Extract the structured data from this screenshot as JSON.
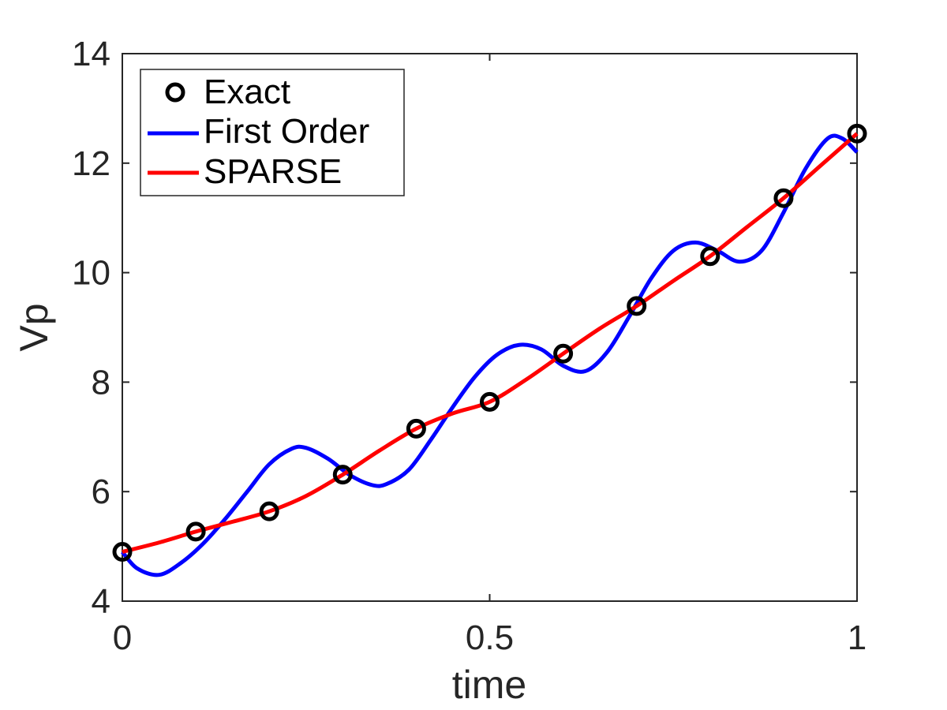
{
  "chart_data": {
    "type": "line",
    "xlabel": "time",
    "ylabel": "Vp",
    "xlim": [
      0,
      1
    ],
    "ylim": [
      4,
      14
    ],
    "xticks": [
      "0",
      "0.5",
      "1"
    ],
    "yticks": [
      "4",
      "6",
      "8",
      "10",
      "12",
      "14"
    ],
    "grid": false,
    "legend_position": "top-left",
    "series": [
      {
        "name": "Exact",
        "style": "markers",
        "color": "#000000",
        "x": [
          0,
          0.1,
          0.2,
          0.3,
          0.4,
          0.5,
          0.6,
          0.7,
          0.8,
          0.9,
          1.0
        ],
        "y": [
          4.9,
          5.27,
          5.64,
          6.31,
          7.15,
          7.64,
          8.52,
          9.39,
          10.3,
          11.36,
          12.54
        ]
      },
      {
        "name": "First Order",
        "style": "line",
        "color": "#0000ff",
        "x": [
          0,
          0.02,
          0.05,
          0.08,
          0.11,
          0.14,
          0.17,
          0.2,
          0.23,
          0.25,
          0.28,
          0.31,
          0.34,
          0.36,
          0.39,
          0.42,
          0.45,
          0.48,
          0.51,
          0.54,
          0.57,
          0.6,
          0.63,
          0.66,
          0.69,
          0.72,
          0.75,
          0.78,
          0.81,
          0.84,
          0.87,
          0.9,
          0.93,
          0.96,
          0.98,
          1.0
        ],
        "y": [
          4.9,
          4.6,
          4.48,
          4.7,
          5.05,
          5.5,
          6.0,
          6.5,
          6.78,
          6.8,
          6.6,
          6.3,
          6.12,
          6.14,
          6.4,
          6.95,
          7.55,
          8.1,
          8.5,
          8.68,
          8.6,
          8.3,
          8.2,
          8.55,
          9.2,
          9.9,
          10.4,
          10.55,
          10.4,
          10.2,
          10.4,
          11.1,
          11.9,
          12.45,
          12.45,
          12.2
        ]
      },
      {
        "name": "SPARSE",
        "style": "line",
        "color": "#ff0000",
        "x": [
          0,
          0.05,
          0.1,
          0.15,
          0.2,
          0.25,
          0.3,
          0.35,
          0.4,
          0.45,
          0.5,
          0.55,
          0.6,
          0.65,
          0.7,
          0.75,
          0.8,
          0.85,
          0.9,
          0.95,
          1.0
        ],
        "y": [
          4.9,
          5.07,
          5.27,
          5.45,
          5.64,
          5.92,
          6.31,
          6.75,
          7.15,
          7.43,
          7.64,
          8.05,
          8.52,
          8.98,
          9.39,
          9.85,
          10.3,
          10.83,
          11.36,
          11.95,
          12.54
        ]
      }
    ]
  }
}
